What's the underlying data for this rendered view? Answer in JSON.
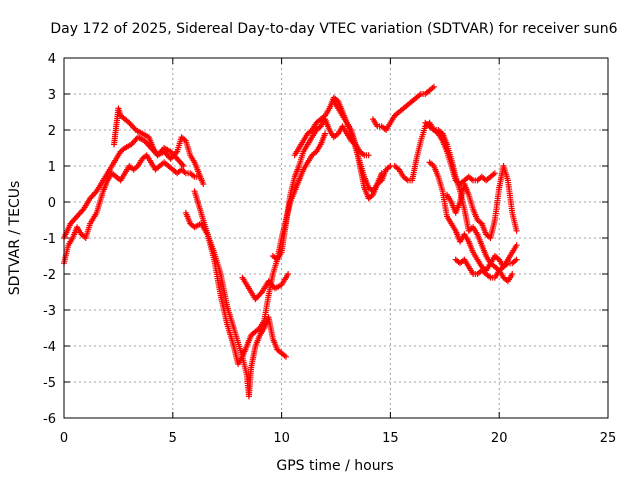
{
  "chart_data": {
    "type": "scatter",
    "title": "Day 172 of 2025, Sidereal Day-to-day VTEC variation (SDTVAR) for receiver sun6",
    "xlabel": "GPS time / hours",
    "ylabel": "SDTVAR / TECUs",
    "xlim": [
      0,
      25
    ],
    "ylim": [
      -6,
      4
    ],
    "x_ticks": [
      0,
      5,
      10,
      15,
      20,
      25
    ],
    "y_ticks": [
      -6,
      -5,
      -4,
      -3,
      -2,
      -1,
      0,
      1,
      2,
      3,
      4
    ],
    "grid": true,
    "legend": "none",
    "marker": "+",
    "color": "#ff0000",
    "series": [
      {
        "x": [
          0.0,
          0.2,
          0.4,
          0.6,
          0.8,
          1.0,
          1.2,
          1.5,
          1.8,
          2.0,
          2.2,
          2.4,
          2.6,
          2.8,
          3.0,
          3.2,
          3.4,
          3.6,
          3.8,
          4.0,
          4.2,
          4.4,
          4.6,
          4.8,
          5.0,
          5.2,
          5.4,
          5.6,
          5.8,
          6.0,
          6.2
        ],
        "y": [
          -1.7,
          -1.2,
          -1.0,
          -0.7,
          -0.9,
          -1.0,
          -0.6,
          -0.3,
          0.3,
          0.6,
          0.8,
          0.7,
          0.6,
          0.8,
          1.0,
          0.9,
          1.0,
          1.2,
          1.3,
          1.1,
          0.9,
          1.0,
          1.1,
          1.0,
          0.9,
          0.8,
          0.9,
          0.8,
          0.8,
          0.7,
          0.7
        ]
      },
      {
        "x": [
          0.0,
          0.3,
          0.6,
          0.9,
          1.2,
          1.5,
          1.8,
          2.1,
          2.4,
          2.6,
          2.8,
          3.1,
          3.4,
          3.7,
          4.0,
          4.3,
          4.6,
          4.9,
          5.2,
          5.4,
          5.6,
          5.8,
          6.0,
          6.2,
          6.4
        ],
        "y": [
          -1.0,
          -0.6,
          -0.4,
          -0.2,
          0.1,
          0.3,
          0.6,
          0.9,
          1.2,
          1.4,
          1.5,
          1.6,
          1.8,
          1.7,
          1.5,
          1.3,
          1.4,
          1.2,
          1.4,
          1.8,
          1.7,
          1.3,
          1.1,
          0.8,
          0.5
        ]
      },
      {
        "x": [
          2.3,
          2.4,
          2.5,
          2.6,
          2.8,
          3.0,
          3.3,
          3.6,
          3.9,
          4.1,
          4.3,
          4.6,
          4.9,
          5.2,
          5.5
        ],
        "y": [
          1.6,
          2.1,
          2.6,
          2.4,
          2.3,
          2.2,
          2.0,
          1.9,
          1.8,
          1.5,
          1.3,
          1.5,
          1.4,
          1.2,
          1.0
        ]
      },
      {
        "x": [
          5.6,
          5.8,
          6.0,
          6.3,
          6.6,
          6.9,
          7.2,
          7.5,
          7.8,
          8.0,
          8.2,
          8.4,
          8.6,
          8.8,
          9.0,
          9.2,
          9.4,
          9.6,
          9.8,
          10.0,
          10.2,
          10.4,
          10.6,
          10.8,
          11.0,
          11.2,
          11.4,
          11.6,
          11.8,
          12.0
        ],
        "y": [
          -0.3,
          -0.6,
          -0.7,
          -0.6,
          -0.9,
          -1.6,
          -2.6,
          -3.4,
          -4.0,
          -4.5,
          -4.3,
          -4.0,
          -3.7,
          -3.6,
          -3.5,
          -3.3,
          -2.6,
          -2.0,
          -1.6,
          -1.0,
          -0.5,
          0.0,
          0.3,
          0.6,
          0.9,
          1.1,
          1.3,
          1.4,
          1.6,
          1.9
        ]
      },
      {
        "x": [
          6.0,
          6.3,
          6.6,
          6.9,
          7.2,
          7.5,
          7.8,
          8.0,
          8.2,
          8.4,
          8.5,
          8.6,
          8.8,
          9.0,
          9.2,
          9.4,
          9.6,
          9.8,
          10.0,
          10.2
        ],
        "y": [
          0.3,
          -0.3,
          -0.9,
          -1.4,
          -2.0,
          -2.9,
          -3.5,
          -3.9,
          -4.3,
          -4.8,
          -5.4,
          -4.6,
          -4.0,
          -3.7,
          -3.5,
          -3.2,
          -3.8,
          -4.1,
          -4.2,
          -4.3
        ]
      },
      {
        "x": [
          8.2,
          8.5,
          8.8,
          9.1,
          9.4,
          9.7,
          10.0,
          10.3
        ],
        "y": [
          -2.1,
          -2.4,
          -2.7,
          -2.5,
          -2.2,
          -2.4,
          -2.3,
          -2.0
        ]
      },
      {
        "x": [
          9.6,
          9.8,
          10.0,
          10.2,
          10.4,
          10.6,
          10.8,
          11.0,
          11.2,
          11.4,
          11.6,
          11.8,
          12.0,
          12.2,
          12.4,
          12.6,
          12.8,
          13.0,
          13.2,
          13.4,
          13.6,
          13.8,
          14.0
        ],
        "y": [
          -1.5,
          -1.6,
          -1.4,
          -0.6,
          0.2,
          0.7,
          1.0,
          1.4,
          1.6,
          1.8,
          2.0,
          2.1,
          2.3,
          2.0,
          1.8,
          1.9,
          2.1,
          1.9,
          1.7,
          1.6,
          1.4,
          1.3,
          1.3
        ]
      },
      {
        "x": [
          10.6,
          10.8,
          11.0,
          11.2,
          11.4,
          11.6,
          11.8,
          12.0,
          12.2,
          12.4,
          12.6,
          12.8,
          13.0,
          13.2,
          13.4,
          13.6,
          13.8,
          14.0,
          14.2,
          14.4,
          14.6
        ],
        "y": [
          1.3,
          1.5,
          1.7,
          1.9,
          2.0,
          2.2,
          2.3,
          2.4,
          2.6,
          2.9,
          2.8,
          2.5,
          2.2,
          2.0,
          1.6,
          1.0,
          0.4,
          0.1,
          0.2,
          0.5,
          0.8
        ]
      },
      {
        "x": [
          12.4,
          12.6,
          12.8,
          13.0,
          13.2,
          13.4,
          13.6,
          13.8,
          14.0,
          14.2,
          14.4,
          14.6,
          14.8,
          15.0
        ],
        "y": [
          2.8,
          2.6,
          2.4,
          2.2,
          1.9,
          1.5,
          1.1,
          0.7,
          0.4,
          0.3,
          0.5,
          0.6,
          0.9,
          1.0
        ]
      },
      {
        "x": [
          14.2,
          14.4,
          14.6,
          14.8,
          15.0,
          15.2,
          15.4,
          15.6,
          15.8,
          16.0,
          16.2,
          16.4,
          16.6,
          16.8,
          17.0
        ],
        "y": [
          2.3,
          2.1,
          2.1,
          2.0,
          2.2,
          2.4,
          2.5,
          2.6,
          2.7,
          2.8,
          2.9,
          3.0,
          3.0,
          3.1,
          3.2
        ]
      },
      {
        "x": [
          15.2,
          15.4,
          15.6,
          15.8,
          16.0,
          16.2,
          16.4,
          16.6,
          16.8,
          17.0,
          17.2,
          17.4,
          17.6,
          17.8,
          18.0,
          18.2,
          18.4,
          18.6,
          18.8,
          19.0,
          19.2,
          19.4,
          19.6,
          19.8
        ],
        "y": [
          1.0,
          0.9,
          0.7,
          0.6,
          0.6,
          1.2,
          1.7,
          2.1,
          2.2,
          2.0,
          1.9,
          1.7,
          1.4,
          1.0,
          0.6,
          0.5,
          0.6,
          0.7,
          0.6,
          0.6,
          0.7,
          0.6,
          0.7,
          0.8
        ]
      },
      {
        "x": [
          16.6,
          16.8,
          17.0,
          17.2,
          17.4,
          17.6,
          17.8,
          18.0,
          18.2,
          18.4,
          18.6,
          18.8,
          19.0,
          19.2,
          19.4,
          19.6,
          19.8,
          20.0,
          20.2,
          20.4,
          20.6
        ],
        "y": [
          2.2,
          2.1,
          2.0,
          2.0,
          1.9,
          1.6,
          1.2,
          0.7,
          0.3,
          -0.2,
          -0.8,
          -0.7,
          -0.9,
          -1.2,
          -1.5,
          -1.7,
          -1.8,
          -1.9,
          -2.1,
          -2.2,
          -2.0
        ]
      },
      {
        "x": [
          16.8,
          17.0,
          17.2,
          17.4,
          17.6,
          17.8,
          18.0,
          18.2,
          18.4,
          18.6,
          18.8,
          19.0,
          19.2,
          19.4,
          19.6,
          19.8,
          20.0,
          20.2,
          20.4,
          20.6,
          20.8
        ],
        "y": [
          1.1,
          1.0,
          0.7,
          0.3,
          -0.4,
          -0.6,
          -0.8,
          -1.1,
          -0.9,
          -1.1,
          -1.4,
          -1.6,
          -1.8,
          -1.9,
          -1.7,
          -1.5,
          -1.6,
          -1.8,
          -1.7,
          -1.7,
          -1.6
        ]
      },
      {
        "x": [
          17.6,
          17.8,
          18.0,
          18.2,
          18.4,
          18.6,
          18.8,
          19.0,
          19.2,
          19.4,
          19.6,
          19.8,
          20.0,
          20.2,
          20.4,
          20.6,
          20.8
        ],
        "y": [
          0.2,
          0.0,
          -0.3,
          0.0,
          0.5,
          0.2,
          -0.2,
          -0.5,
          -0.6,
          -0.9,
          -1.0,
          -0.5,
          0.4,
          1.0,
          0.6,
          -0.3,
          -0.8
        ]
      },
      {
        "x": [
          18.0,
          18.2,
          18.4,
          18.6,
          18.8,
          19.0,
          19.2,
          19.4,
          19.6,
          19.8,
          20.0,
          20.2,
          20.4,
          20.6,
          20.8
        ],
        "y": [
          -1.6,
          -1.7,
          -1.6,
          -1.8,
          -2.0,
          -2.0,
          -1.9,
          -2.0,
          -2.1,
          -2.1,
          -1.9,
          -1.8,
          -1.6,
          -1.4,
          -1.2
        ]
      }
    ]
  }
}
